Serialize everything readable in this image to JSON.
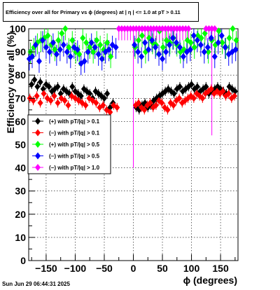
{
  "footer": {
    "timestamp": "Sun Jun 29 06:44:31 2025"
  },
  "chart_data": {
    "type": "scatter",
    "title": "Efficiency over all for Primary vs ϕ (degrees) at | η | <= 1.0 at pT > 0.11",
    "xlabel": "ϕ (degrees)",
    "ylabel": "Efficiency over all (%)",
    "xlim": [
      -180,
      180
    ],
    "ylim": [
      0,
      100
    ],
    "xticks": [
      -150,
      -100,
      -50,
      0,
      50,
      100,
      150
    ],
    "xtick_labels": [
      "−150",
      "−100",
      "−50",
      "0",
      "50",
      "100",
      "150"
    ],
    "yticks": [
      0,
      10,
      20,
      30,
      40,
      50,
      60,
      70,
      80,
      90,
      100
    ],
    "grid": true,
    "legend_position": "left",
    "series": [
      {
        "name": "(+) with pT/|q| > 0.1",
        "color": "#000000",
        "x": [
          -175,
          -170,
          -165,
          -160,
          -155,
          -150,
          -145,
          -140,
          -135,
          -130,
          -125,
          -120,
          -115,
          -110,
          -105,
          -100,
          -95,
          -90,
          -85,
          -80,
          -75,
          -70,
          -65,
          -60,
          -55,
          -50,
          -45,
          -40,
          -35,
          5,
          10,
          15,
          20,
          25,
          30,
          35,
          40,
          45,
          50,
          55,
          60,
          65,
          70,
          75,
          80,
          85,
          90,
          95,
          100,
          105,
          110,
          115,
          120,
          125,
          130,
          135,
          140,
          145,
          150,
          155,
          160,
          165,
          170,
          175
        ],
        "y": [
          76,
          78,
          75,
          77,
          74,
          76,
          75,
          73,
          74,
          75,
          72,
          74,
          73,
          72,
          75,
          73,
          72,
          71,
          74,
          73,
          72,
          70,
          73,
          72,
          71,
          70,
          72,
          66,
          68,
          66,
          65,
          67,
          68,
          66,
          67,
          69,
          70,
          71,
          72,
          73,
          74,
          73,
          72,
          74,
          75,
          73,
          74,
          75,
          76,
          74,
          75,
          73,
          74,
          75,
          72,
          73,
          74,
          75,
          74,
          73,
          72,
          75,
          74,
          73
        ]
      },
      {
        "name": "(−) with pT/|q| > 0.1",
        "color": "#ff0000",
        "x": [
          -178,
          -172,
          -166,
          -160,
          -154,
          -148,
          -142,
          -136,
          -130,
          -124,
          -118,
          -112,
          -106,
          -100,
          -94,
          -88,
          -82,
          -76,
          -70,
          -64,
          -58,
          -52,
          -46,
          -40,
          -34,
          -28,
          4,
          9,
          14,
          19,
          24,
          29,
          34,
          39,
          44,
          49,
          54,
          59,
          64,
          69,
          74,
          79,
          84,
          89,
          94,
          99,
          104,
          109,
          114,
          119,
          124,
          129,
          134,
          139,
          144,
          149,
          154,
          159,
          164,
          169,
          174
        ],
        "y": [
          70,
          69,
          71,
          68,
          72,
          70,
          69,
          71,
          68,
          70,
          69,
          67,
          71,
          70,
          69,
          68,
          67,
          70,
          69,
          68,
          66,
          67,
          65,
          64,
          67,
          66,
          67,
          68,
          66,
          65,
          67,
          68,
          66,
          67,
          69,
          68,
          66,
          65,
          68,
          67,
          69,
          70,
          68,
          69,
          70,
          71,
          70,
          72,
          71,
          70,
          72,
          73,
          74,
          72,
          73,
          72,
          73,
          71,
          72,
          70,
          71
        ]
      },
      {
        "name": "(+) with pT/|q| > 0.5",
        "color": "#00ff00",
        "x": [
          -177,
          -171,
          -165,
          -159,
          -153,
          -147,
          -141,
          -135,
          -129,
          -123,
          -117,
          -111,
          -105,
          -99,
          -93,
          -87,
          -81,
          -75,
          -69,
          -63,
          -57,
          -51,
          -45,
          -39,
          3,
          9,
          15,
          21,
          27,
          33,
          39,
          45,
          51,
          57,
          63,
          69,
          75,
          81,
          87,
          93,
          99,
          105,
          111,
          117,
          123,
          129,
          135,
          141,
          147,
          153,
          159,
          165,
          171,
          177
        ],
        "y": [
          90,
          92,
          94,
          95,
          96,
          97,
          93,
          91,
          95,
          98,
          100,
          92,
          95,
          90,
          89,
          96,
          94,
          92,
          90,
          95,
          93,
          91,
          94,
          88,
          92,
          95,
          97,
          90,
          96,
          94,
          93,
          99,
          92,
          95,
          94,
          96,
          93,
          90,
          91,
          95,
          94,
          92,
          97,
          96,
          98,
          90,
          95,
          93,
          99,
          94,
          92,
          96,
          100,
          95
        ]
      },
      {
        "name": "(−) with pT/|q| > 0.5",
        "color": "#0000ff",
        "x": [
          -179,
          -174,
          -168,
          -162,
          -156,
          -150,
          -144,
          -138,
          -132,
          -126,
          -120,
          -114,
          -108,
          -102,
          -96,
          -90,
          -84,
          -78,
          -72,
          -66,
          -60,
          -54,
          -48,
          -42,
          -36,
          -30,
          2,
          8,
          14,
          20,
          26,
          32,
          38,
          44,
          50,
          56,
          62,
          68,
          74,
          80,
          86,
          92,
          98,
          104,
          110,
          116,
          122,
          128,
          134,
          140,
          146,
          152,
          158,
          164,
          170,
          176
        ],
        "y": [
          87,
          88,
          93,
          86,
          95,
          92,
          90,
          94,
          89,
          91,
          93,
          90,
          88,
          92,
          91,
          85,
          86,
          90,
          94,
          92,
          89,
          87,
          90,
          91,
          93,
          92,
          93,
          90,
          88,
          94,
          91,
          95,
          92,
          89,
          87,
          90,
          93,
          96,
          94,
          92,
          88,
          90,
          91,
          97,
          95,
          93,
          90,
          92,
          96,
          88,
          94,
          97,
          92,
          89,
          90,
          91
        ]
      },
      {
        "name": "(−) with pT/|q| > 1.0",
        "color": "#ff00ff",
        "x": [
          -25,
          -20,
          -15,
          -10,
          -5,
          0,
          5,
          10,
          15,
          20,
          25,
          30,
          35,
          40,
          45,
          50,
          55,
          60,
          65,
          70,
          75,
          80,
          85,
          90,
          95,
          125,
          130,
          135,
          140
        ],
        "y": [
          100,
          100,
          100,
          100,
          100,
          100,
          100,
          100,
          100,
          100,
          100,
          100,
          100,
          100,
          100,
          100,
          100,
          100,
          100,
          100,
          100,
          100,
          100,
          100,
          100,
          100,
          100,
          100,
          100
        ]
      }
    ]
  }
}
